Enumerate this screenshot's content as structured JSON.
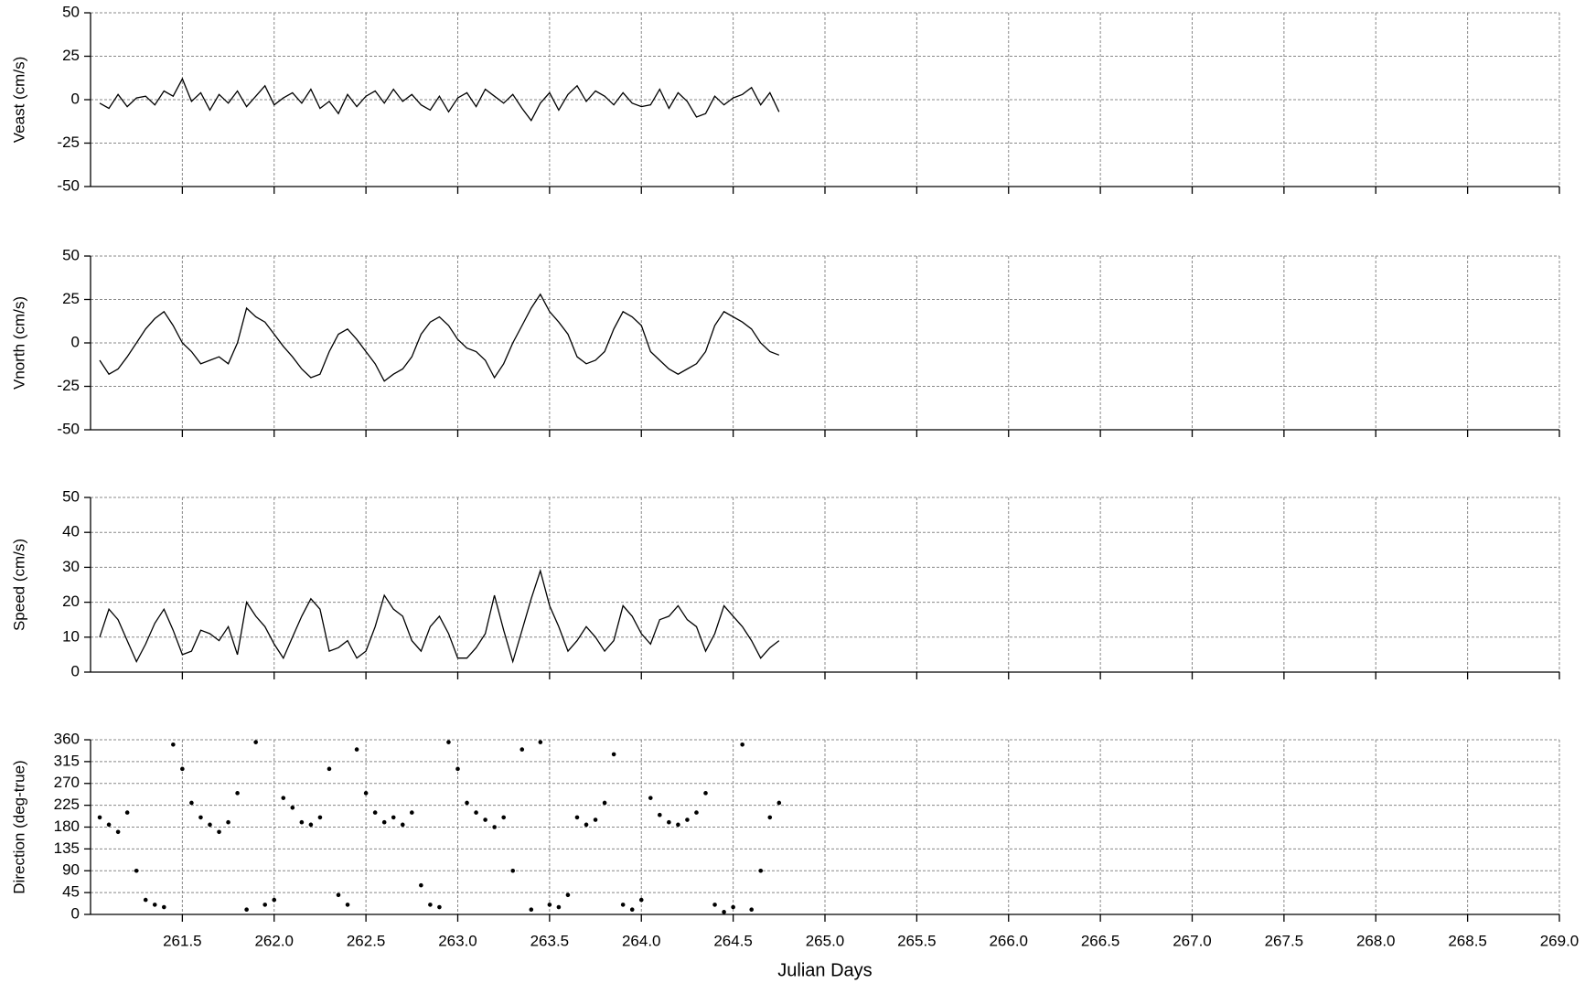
{
  "chart_data": [
    {
      "type": "line",
      "ylabel": "Veast (cm/s)",
      "color": "#000000",
      "grid": true,
      "xlim": [
        261.0,
        269.0
      ],
      "xticks": [
        261.5,
        {
          "value": 262,
          "label": "262.0"
        },
        262.5,
        {
          "value": 263,
          "label": "263.0"
        },
        263.5,
        {
          "value": 264,
          "label": "264.0"
        },
        264.5,
        {
          "value": 265,
          "label": "265.0"
        },
        265.5,
        {
          "value": 266,
          "label": "266.0"
        },
        266.5,
        {
          "value": 267,
          "label": "267.0"
        },
        267.5,
        {
          "value": 268,
          "label": "268.0"
        },
        268.5,
        {
          "value": 269,
          "label": "269.0"
        }
      ],
      "ylim": [
        -50,
        50
      ],
      "yticks": [
        -50,
        -25,
        0,
        25,
        50
      ],
      "x": [
        261.05,
        261.1,
        261.15,
        261.2,
        261.25,
        261.3,
        261.35,
        261.4,
        261.45,
        261.5,
        261.55,
        261.6,
        261.65,
        261.7,
        261.75,
        261.8,
        261.85,
        261.9,
        261.95,
        262.0,
        262.05,
        262.1,
        262.15,
        262.2,
        262.25,
        262.3,
        262.35,
        262.4,
        262.45,
        262.5,
        262.55,
        262.6,
        262.65,
        262.7,
        262.75,
        262.8,
        262.85,
        262.9,
        262.95,
        263.0,
        263.05,
        263.1,
        263.15,
        263.2,
        263.25,
        263.3,
        263.35,
        263.4,
        263.45,
        263.5,
        263.55,
        263.6,
        263.65,
        263.7,
        263.75,
        263.8,
        263.85,
        263.9,
        263.95,
        264.0,
        264.05,
        264.1,
        264.15,
        264.2,
        264.25,
        264.3,
        264.35,
        264.4,
        264.45,
        264.5,
        264.55,
        264.6,
        264.65,
        264.7,
        264.75
      ],
      "values": [
        -2,
        -5,
        3,
        -4,
        1,
        2,
        -3,
        5,
        2,
        12,
        -1,
        4,
        -6,
        3,
        -2,
        5,
        -4,
        2,
        8,
        -3,
        1,
        4,
        -2,
        6,
        -5,
        -1,
        -8,
        3,
        -4,
        2,
        5,
        -2,
        6,
        -1,
        3,
        -3,
        -6,
        2,
        -7,
        1,
        4,
        -4,
        6,
        2,
        -2,
        3,
        -5,
        -12,
        -2,
        4,
        -6,
        3,
        8,
        -1,
        5,
        2,
        -3,
        4,
        -2,
        -4,
        -3,
        6,
        -5,
        4,
        -1,
        -10,
        -8,
        2,
        -3,
        1,
        3,
        7,
        -3,
        4,
        -7
      ]
    },
    {
      "type": "line",
      "ylabel": "Vnorth (cm/s)",
      "color": "#000000",
      "grid": true,
      "xlim": [
        261.0,
        269.0
      ],
      "xticks": [
        261.5,
        {
          "value": 262,
          "label": "262.0"
        },
        262.5,
        {
          "value": 263,
          "label": "263.0"
        },
        263.5,
        {
          "value": 264,
          "label": "264.0"
        },
        264.5,
        {
          "value": 265,
          "label": "265.0"
        },
        265.5,
        {
          "value": 266,
          "label": "266.0"
        },
        266.5,
        {
          "value": 267,
          "label": "267.0"
        },
        267.5,
        {
          "value": 268,
          "label": "268.0"
        },
        268.5,
        {
          "value": 269,
          "label": "269.0"
        }
      ],
      "ylim": [
        -50,
        50
      ],
      "yticks": [
        -50,
        -25,
        0,
        25,
        50
      ],
      "x": [
        261.05,
        261.1,
        261.15,
        261.2,
        261.25,
        261.3,
        261.35,
        261.4,
        261.45,
        261.5,
        261.55,
        261.6,
        261.65,
        261.7,
        261.75,
        261.8,
        261.85,
        261.9,
        261.95,
        262.0,
        262.05,
        262.1,
        262.15,
        262.2,
        262.25,
        262.3,
        262.35,
        262.4,
        262.45,
        262.5,
        262.55,
        262.6,
        262.65,
        262.7,
        262.75,
        262.8,
        262.85,
        262.9,
        262.95,
        263.0,
        263.05,
        263.1,
        263.15,
        263.2,
        263.25,
        263.3,
        263.35,
        263.4,
        263.45,
        263.5,
        263.55,
        263.6,
        263.65,
        263.7,
        263.75,
        263.8,
        263.85,
        263.9,
        263.95,
        264.0,
        264.05,
        264.1,
        264.15,
        264.2,
        264.25,
        264.3,
        264.35,
        264.4,
        264.45,
        264.5,
        264.55,
        264.6,
        264.65,
        264.7,
        264.75
      ],
      "values": [
        -10,
        -18,
        -15,
        -8,
        0,
        8,
        14,
        18,
        10,
        0,
        -5,
        -12,
        -10,
        -8,
        -12,
        0,
        20,
        15,
        12,
        5,
        -2,
        -8,
        -15,
        -20,
        -18,
        -5,
        5,
        8,
        2,
        -5,
        -12,
        -22,
        -18,
        -15,
        -8,
        5,
        12,
        15,
        10,
        2,
        -3,
        -5,
        -10,
        -20,
        -12,
        0,
        10,
        20,
        28,
        18,
        12,
        5,
        -8,
        -12,
        -10,
        -5,
        8,
        18,
        15,
        10,
        -5,
        -10,
        -15,
        -18,
        -15,
        -12,
        -5,
        10,
        18,
        15,
        12,
        8,
        0,
        -5,
        -7
      ]
    },
    {
      "type": "line",
      "ylabel": "Speed (cm/s)",
      "color": "#000000",
      "grid": true,
      "xlim": [
        261.0,
        269.0
      ],
      "xticks": [
        261.5,
        {
          "value": 262,
          "label": "262.0"
        },
        262.5,
        {
          "value": 263,
          "label": "263.0"
        },
        263.5,
        {
          "value": 264,
          "label": "264.0"
        },
        264.5,
        {
          "value": 265,
          "label": "265.0"
        },
        265.5,
        {
          "value": 266,
          "label": "266.0"
        },
        266.5,
        {
          "value": 267,
          "label": "267.0"
        },
        267.5,
        {
          "value": 268,
          "label": "268.0"
        },
        268.5,
        {
          "value": 269,
          "label": "269.0"
        }
      ],
      "ylim": [
        0,
        50
      ],
      "yticks": [
        0,
        10,
        20,
        30,
        40,
        50
      ],
      "x": [
        261.05,
        261.1,
        261.15,
        261.2,
        261.25,
        261.3,
        261.35,
        261.4,
        261.45,
        261.5,
        261.55,
        261.6,
        261.65,
        261.7,
        261.75,
        261.8,
        261.85,
        261.9,
        261.95,
        262.0,
        262.05,
        262.1,
        262.15,
        262.2,
        262.25,
        262.3,
        262.35,
        262.4,
        262.45,
        262.5,
        262.55,
        262.6,
        262.65,
        262.7,
        262.75,
        262.8,
        262.85,
        262.9,
        262.95,
        263.0,
        263.05,
        263.1,
        263.15,
        263.2,
        263.25,
        263.3,
        263.35,
        263.4,
        263.45,
        263.5,
        263.55,
        263.6,
        263.65,
        263.7,
        263.75,
        263.8,
        263.85,
        263.9,
        263.95,
        264.0,
        264.05,
        264.1,
        264.15,
        264.2,
        264.25,
        264.3,
        264.35,
        264.4,
        264.45,
        264.5,
        264.55,
        264.6,
        264.65,
        264.7,
        264.75
      ],
      "values": [
        10,
        18,
        15,
        9,
        3,
        8,
        14,
        18,
        12,
        5,
        6,
        12,
        11,
        9,
        13,
        5,
        20,
        16,
        13,
        8,
        4,
        10,
        16,
        21,
        18,
        6,
        7,
        9,
        4,
        6,
        13,
        22,
        18,
        16,
        9,
        6,
        13,
        16,
        11,
        4,
        4,
        7,
        11,
        22,
        12,
        3,
        12,
        21,
        29,
        19,
        13,
        6,
        9,
        13,
        10,
        6,
        9,
        19,
        16,
        11,
        8,
        15,
        16,
        19,
        15,
        13,
        6,
        11,
        19,
        16,
        13,
        9,
        4,
        7,
        9
      ]
    },
    {
      "type": "scatter",
      "ylabel": "Direction (deg-true)",
      "xlabel": "Julian Days",
      "color": "#000000",
      "grid": true,
      "xlim": [
        261.0,
        269.0
      ],
      "xticks": [
        261.5,
        {
          "value": 262,
          "label": "262.0"
        },
        262.5,
        {
          "value": 263,
          "label": "263.0"
        },
        263.5,
        {
          "value": 264,
          "label": "264.0"
        },
        264.5,
        {
          "value": 265,
          "label": "265.0"
        },
        265.5,
        {
          "value": 266,
          "label": "266.0"
        },
        266.5,
        {
          "value": 267,
          "label": "267.0"
        },
        267.5,
        {
          "value": 268,
          "label": "268.0"
        },
        268.5,
        {
          "value": 269,
          "label": "269.0"
        }
      ],
      "ylim": [
        0,
        360
      ],
      "yticks": [
        0,
        45,
        90,
        135,
        180,
        225,
        270,
        315,
        360
      ],
      "x": [
        261.05,
        261.1,
        261.15,
        261.2,
        261.25,
        261.3,
        261.35,
        261.4,
        261.45,
        261.5,
        261.55,
        261.6,
        261.65,
        261.7,
        261.75,
        261.8,
        261.85,
        261.9,
        261.95,
        262.0,
        262.05,
        262.1,
        262.15,
        262.2,
        262.25,
        262.3,
        262.35,
        262.4,
        262.45,
        262.5,
        262.55,
        262.6,
        262.65,
        262.7,
        262.75,
        262.8,
        262.85,
        262.9,
        262.95,
        263.0,
        263.05,
        263.1,
        263.15,
        263.2,
        263.25,
        263.3,
        263.35,
        263.4,
        263.45,
        263.5,
        263.55,
        263.6,
        263.65,
        263.7,
        263.75,
        263.8,
        263.85,
        263.9,
        263.95,
        264.0,
        264.05,
        264.1,
        264.15,
        264.2,
        264.25,
        264.3,
        264.35,
        264.4,
        264.45,
        264.5,
        264.55,
        264.6,
        264.65,
        264.7,
        264.75
      ],
      "values": [
        200,
        185,
        170,
        210,
        90,
        30,
        20,
        15,
        350,
        300,
        230,
        200,
        185,
        170,
        190,
        250,
        10,
        355,
        20,
        30,
        240,
        220,
        190,
        185,
        200,
        300,
        40,
        20,
        340,
        250,
        210,
        190,
        200,
        185,
        210,
        60,
        20,
        15,
        355,
        300,
        230,
        210,
        195,
        180,
        200,
        90,
        340,
        10,
        355,
        20,
        15,
        40,
        200,
        185,
        195,
        230,
        330,
        20,
        10,
        30,
        240,
        205,
        190,
        185,
        195,
        210,
        250,
        20,
        5,
        15,
        350,
        10,
        90,
        200,
        230
      ]
    }
  ]
}
